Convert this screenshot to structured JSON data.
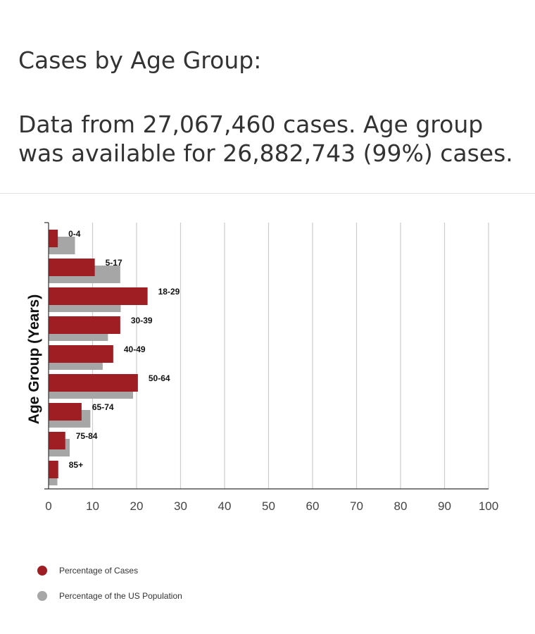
{
  "header": {
    "title": "Cases by Age Group:",
    "subtitle": "Data from 27,067,460 cases. Age group was available for 26,882,743 (99%) cases."
  },
  "chart_data": {
    "type": "bar",
    "orientation": "horizontal",
    "ylabel": "Age Group (Years)",
    "xlim": [
      0,
      100
    ],
    "x_ticks": [
      "0",
      "10",
      "20",
      "30",
      "40",
      "50",
      "60",
      "70",
      "80",
      "90",
      "100"
    ],
    "grid": true,
    "legend_position": "bottom-left",
    "categories": [
      "0-4",
      "5-17",
      "18-29",
      "30-39",
      "40-49",
      "50-64",
      "65-74",
      "75-84",
      "85+"
    ],
    "series": [
      {
        "name": "Percentage of Cases",
        "color": "#9e1e23",
        "values": [
          2.1,
          10.5,
          22.5,
          16.3,
          14.7,
          20.3,
          7.5,
          3.8,
          2.2
        ]
      },
      {
        "name": "Percentage of the US Population",
        "color": "#a6a6a6",
        "values": [
          6.0,
          16.3,
          16.4,
          13.5,
          12.3,
          19.2,
          9.5,
          4.8,
          2.0
        ]
      }
    ]
  }
}
